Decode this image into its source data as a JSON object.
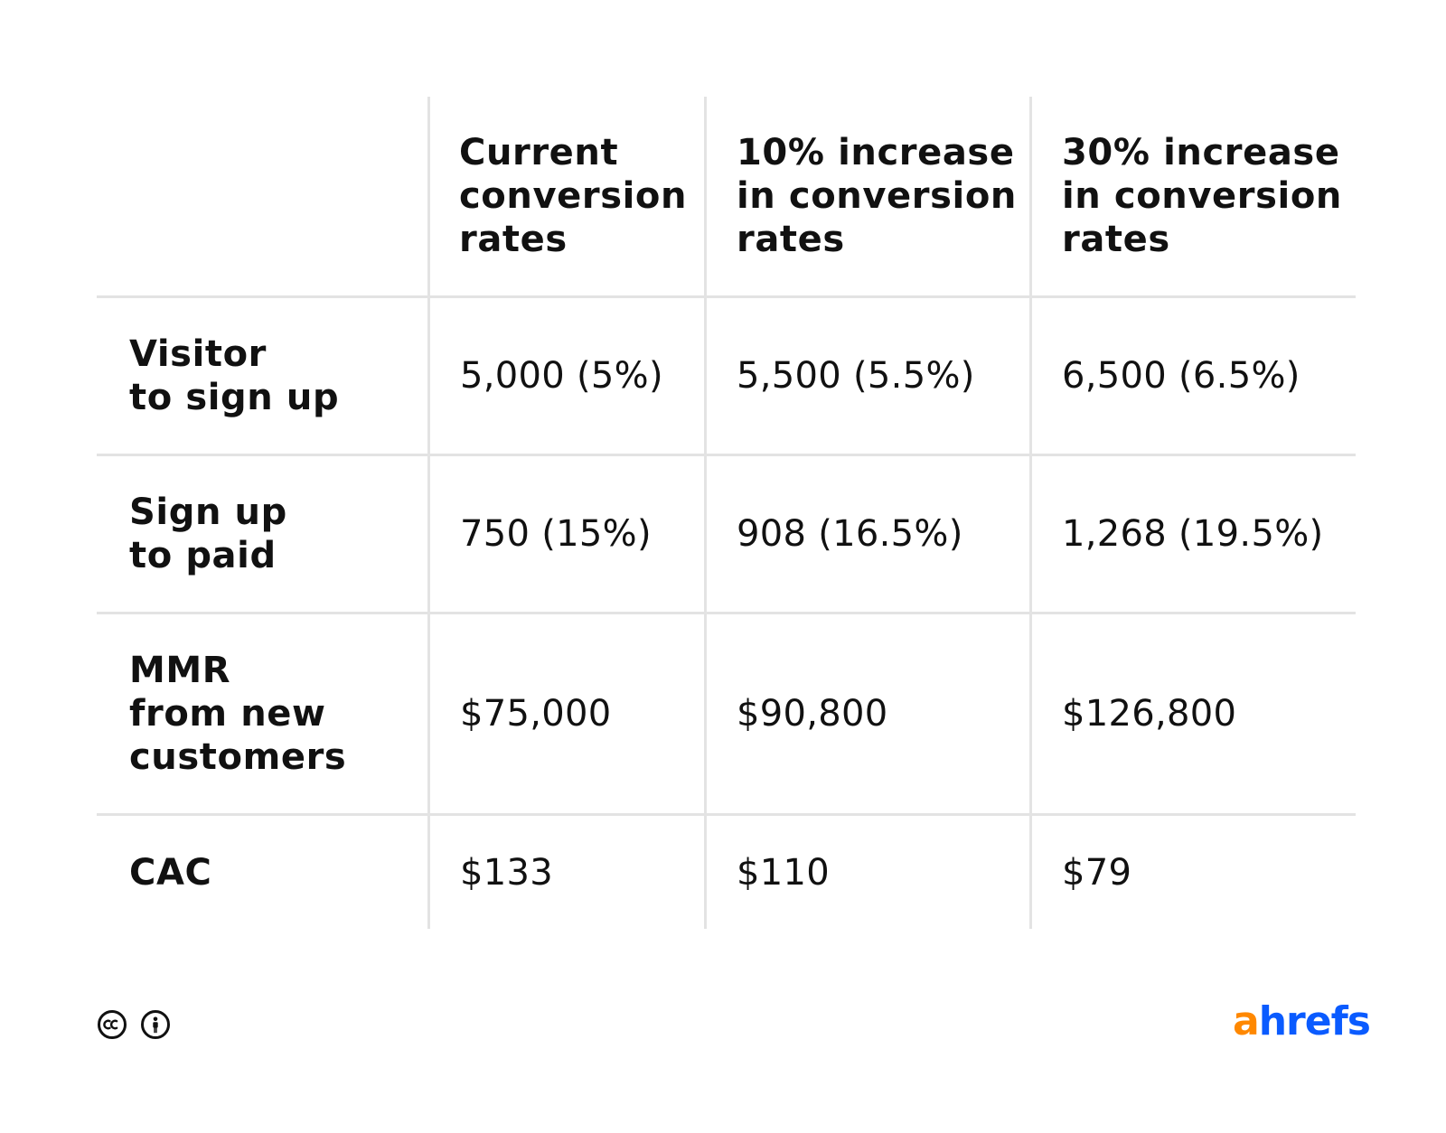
{
  "table": {
    "columns": [
      "Current\nconversion\nrates",
      "10% increase\nin conversion\nrates",
      "30% increase\nin conversion\nrates"
    ],
    "rows": [
      {
        "label": "Visitor\nto sign up",
        "values": [
          "5,000 (5%)",
          "5,500 (5.5%)",
          "6,500 (6.5%)"
        ]
      },
      {
        "label": "Sign up\nto paid",
        "values": [
          "750 (15%)",
          "908 (16.5%)",
          "1,268 (19.5%)"
        ]
      },
      {
        "label": "MMR\nfrom new\ncustomers",
        "values": [
          "$75,000",
          "$90,800",
          "$126,800"
        ]
      },
      {
        "label": "CAC",
        "values": [
          "$133",
          "$110",
          "$79"
        ]
      }
    ]
  },
  "footer": {
    "icons": [
      "creative-commons-icon",
      "attribution-icon"
    ],
    "brand": {
      "part1": "a",
      "part2": "hrefs",
      "color1": "#ff8800",
      "color2": "#0a5bff"
    }
  }
}
